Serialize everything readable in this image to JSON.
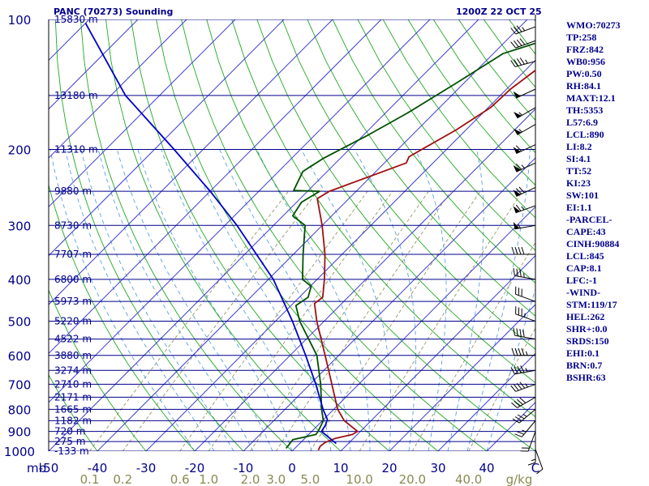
{
  "header": {
    "title": "PANC (70273) Sounding",
    "datetime": "1200Z 22 OCT 25"
  },
  "indices": [
    "WMO:70273",
    "TP:258",
    "FRZ:842",
    "WB0:956",
    "PW:0.50",
    "RH:84.1",
    "MAXT:12.1",
    "TH:5353",
    "L57:6.9",
    "LCL:890",
    "LI:8.2",
    "SI:4.1",
    "TT:52",
    "KI:23",
    "SW:101",
    "EI:1.1",
    "-PARCEL-",
    "CAPE:43",
    "CINH:90884",
    "LCL:845",
    "CAP:8.1",
    "LFC:-1",
    "-WIND-",
    "STM:119/17",
    "HEL:262",
    "SHR+:0.0",
    "SRDS:150",
    "EHI:0.1",
    "BRN:0.7",
    "BSHR:63"
  ],
  "chart_data": {
    "type": "line",
    "title": "PANC (70273) Sounding",
    "xlim": [
      -50,
      50
    ],
    "pressure_axis": "log",
    "pressure_levels": [
      100,
      200,
      300,
      400,
      500,
      600,
      700,
      800,
      900,
      1000
    ],
    "pressure_label_text": [
      "100",
      "200",
      "300",
      "400",
      "500",
      "600",
      "700",
      "800",
      "900",
      "1000"
    ],
    "pressure_unit": "mb",
    "temperature_ticks": [
      -50,
      -40,
      -30,
      -20,
      -10,
      0,
      10,
      20,
      30,
      40
    ],
    "temperature_tick_text": [
      "-50",
      "-40",
      "-30",
      "-20",
      "-10",
      "0",
      "10",
      "20",
      "30",
      "40"
    ],
    "temp_end_label": "C",
    "height_levels": [
      {
        "p": 100,
        "label": "15830 m"
      },
      {
        "p": 150,
        "label": "13180 m"
      },
      {
        "p": 200,
        "label": "11310 m"
      },
      {
        "p": 250,
        "label": "9880 m"
      },
      {
        "p": 300,
        "label": "8730 m"
      },
      {
        "p": 350,
        "label": "7707 m"
      },
      {
        "p": 400,
        "label": "6800 m"
      },
      {
        "p": 450,
        "label": "5973 m"
      },
      {
        "p": 500,
        "label": "5220 m"
      },
      {
        "p": 550,
        "label": "4522 m"
      },
      {
        "p": 600,
        "label": "3880 m"
      },
      {
        "p": 650,
        "label": "3274 m"
      },
      {
        "p": 700,
        "label": "2710 m"
      },
      {
        "p": 750,
        "label": "2171 m"
      },
      {
        "p": 800,
        "label": "1665 m"
      },
      {
        "p": 850,
        "label": "1182 m"
      },
      {
        "p": 900,
        "label": "720 m"
      },
      {
        "p": 950,
        "label": "275 m"
      },
      {
        "p": 1000,
        "label": "-133 m"
      }
    ],
    "mixing_ratio_labels": [
      "0.1",
      "0.2",
      "0.6",
      "1.0",
      "2.0",
      "3.0",
      "5.0",
      "10.0",
      "20.0",
      "40.0"
    ],
    "mixing_ratio_values": [
      0.1,
      0.2,
      0.6,
      1.0,
      2.0,
      3.0,
      5.0,
      10.0,
      20.0,
      40.0
    ],
    "mixing_ratio_unit": "g/kg",
    "colors": {
      "isobar": "#00008b",
      "isotherm": "#3c3ccd",
      "dry_adiabat": "#22a822",
      "moist_adiabat": "#5aa0e0",
      "mixing_ratio": "#8a8a50",
      "temperature": "#a01010",
      "dewpoint": "#005000",
      "parcel": "#0000c8",
      "wind": "#000000",
      "label": "#00008b",
      "mr_label": "#8a8a50"
    },
    "series": [
      {
        "role": "temperature",
        "points": [
          {
            "p": 995,
            "t": 5.2
          },
          {
            "p": 975,
            "t": 4.8
          },
          {
            "p": 955,
            "t": 5.0
          },
          {
            "p": 935,
            "t": 6.2
          },
          {
            "p": 915,
            "t": 9.0
          },
          {
            "p": 900,
            "t": 9.4
          },
          {
            "p": 880,
            "t": 7.5
          },
          {
            "p": 850,
            "t": 4.5
          },
          {
            "p": 800,
            "t": 0.8
          },
          {
            "p": 700,
            "t": -5.5
          },
          {
            "p": 600,
            "t": -12.8
          },
          {
            "p": 500,
            "t": -21.5
          },
          {
            "p": 455,
            "t": -25.6
          },
          {
            "p": 440,
            "t": -25.2
          },
          {
            "p": 400,
            "t": -28.5
          },
          {
            "p": 350,
            "t": -33.5
          },
          {
            "p": 300,
            "t": -40.0
          },
          {
            "p": 260,
            "t": -46.5
          },
          {
            "p": 250,
            "t": -45.5
          },
          {
            "p": 215,
            "t": -35.5
          },
          {
            "p": 208,
            "t": -36.2
          },
          {
            "p": 180,
            "t": -32.0
          },
          {
            "p": 160,
            "t": -29.5
          },
          {
            "p": 145,
            "t": -29.2
          },
          {
            "p": 130,
            "t": -27.8
          },
          {
            "p": 112,
            "t": -27.5
          },
          {
            "p": 102,
            "t": -22.0
          }
        ]
      },
      {
        "role": "dewpoint",
        "points": [
          {
            "p": 985,
            "t": -1.8
          },
          {
            "p": 940,
            "t": -2.2
          },
          {
            "p": 915,
            "t": 1.5
          },
          {
            "p": 900,
            "t": 1.3
          },
          {
            "p": 850,
            "t": 0.2
          },
          {
            "p": 800,
            "t": -2.5
          },
          {
            "p": 700,
            "t": -7.8
          },
          {
            "p": 600,
            "t": -14.5
          },
          {
            "p": 500,
            "t": -25.0
          },
          {
            "p": 460,
            "t": -29.0
          },
          {
            "p": 440,
            "t": -28.2
          },
          {
            "p": 415,
            "t": -29.8
          },
          {
            "p": 400,
            "t": -33.0
          },
          {
            "p": 350,
            "t": -38.0
          },
          {
            "p": 300,
            "t": -43.5
          },
          {
            "p": 285,
            "t": -48.0
          },
          {
            "p": 265,
            "t": -49.0
          },
          {
            "p": 250,
            "t": -47.5
          },
          {
            "p": 249,
            "t": -53.0
          },
          {
            "p": 225,
            "t": -55.0
          },
          {
            "p": 210,
            "t": -53.5
          },
          {
            "p": 185,
            "t": -49.0
          },
          {
            "p": 165,
            "t": -45.5
          },
          {
            "p": 140,
            "t": -41.5
          },
          {
            "p": 120,
            "t": -38.0
          },
          {
            "p": 105,
            "t": -27.0
          }
        ]
      },
      {
        "role": "parcel",
        "points": [
          {
            "p": 960,
            "t": 7.5
          },
          {
            "p": 900,
            "t": 2.0
          },
          {
            "p": 870,
            "t": 1.5
          },
          {
            "p": 845,
            "t": 0.8
          },
          {
            "p": 800,
            "t": -2.2
          },
          {
            "p": 700,
            "t": -8.8
          },
          {
            "p": 600,
            "t": -16.8
          },
          {
            "p": 500,
            "t": -26.5
          },
          {
            "p": 400,
            "t": -39.0
          },
          {
            "p": 300,
            "t": -57.5
          },
          {
            "p": 250,
            "t": -70.0
          },
          {
            "p": 200,
            "t": -86.0
          },
          {
            "p": 150,
            "t": -107.0
          },
          {
            "p": 102,
            "t": -130.0
          }
        ]
      }
    ],
    "wind_barbs": [
      {
        "p": 104,
        "dir": 250,
        "spd": 35
      },
      {
        "p": 112,
        "dir": 250,
        "spd": 40
      },
      {
        "p": 125,
        "dir": 255,
        "spd": 45
      },
      {
        "p": 145,
        "dir": 245,
        "spd": 50
      },
      {
        "p": 160,
        "dir": 240,
        "spd": 55
      },
      {
        "p": 175,
        "dir": 240,
        "spd": 55
      },
      {
        "p": 195,
        "dir": 245,
        "spd": 60
      },
      {
        "p": 215,
        "dir": 245,
        "spd": 65
      },
      {
        "p": 245,
        "dir": 245,
        "spd": 70
      },
      {
        "p": 270,
        "dir": 250,
        "spd": 65
      },
      {
        "p": 300,
        "dir": 260,
        "spd": 55
      },
      {
        "p": 350,
        "dir": 270,
        "spd": 40
      },
      {
        "p": 400,
        "dir": 280,
        "spd": 35
      },
      {
        "p": 450,
        "dir": 290,
        "spd": 30
      },
      {
        "p": 500,
        "dir": 290,
        "spd": 35
      },
      {
        "p": 550,
        "dir": 280,
        "spd": 40
      },
      {
        "p": 600,
        "dir": 270,
        "spd": 45
      },
      {
        "p": 650,
        "dir": 260,
        "spd": 45
      },
      {
        "p": 700,
        "dir": 250,
        "spd": 45
      },
      {
        "p": 750,
        "dir": 240,
        "spd": 40
      },
      {
        "p": 800,
        "dir": 230,
        "spd": 35
      },
      {
        "p": 850,
        "dir": 220,
        "spd": 25
      },
      {
        "p": 900,
        "dir": 200,
        "spd": 20
      },
      {
        "p": 950,
        "dir": 180,
        "spd": 15
      },
      {
        "p": 990,
        "dir": 160,
        "spd": 10
      }
    ]
  }
}
